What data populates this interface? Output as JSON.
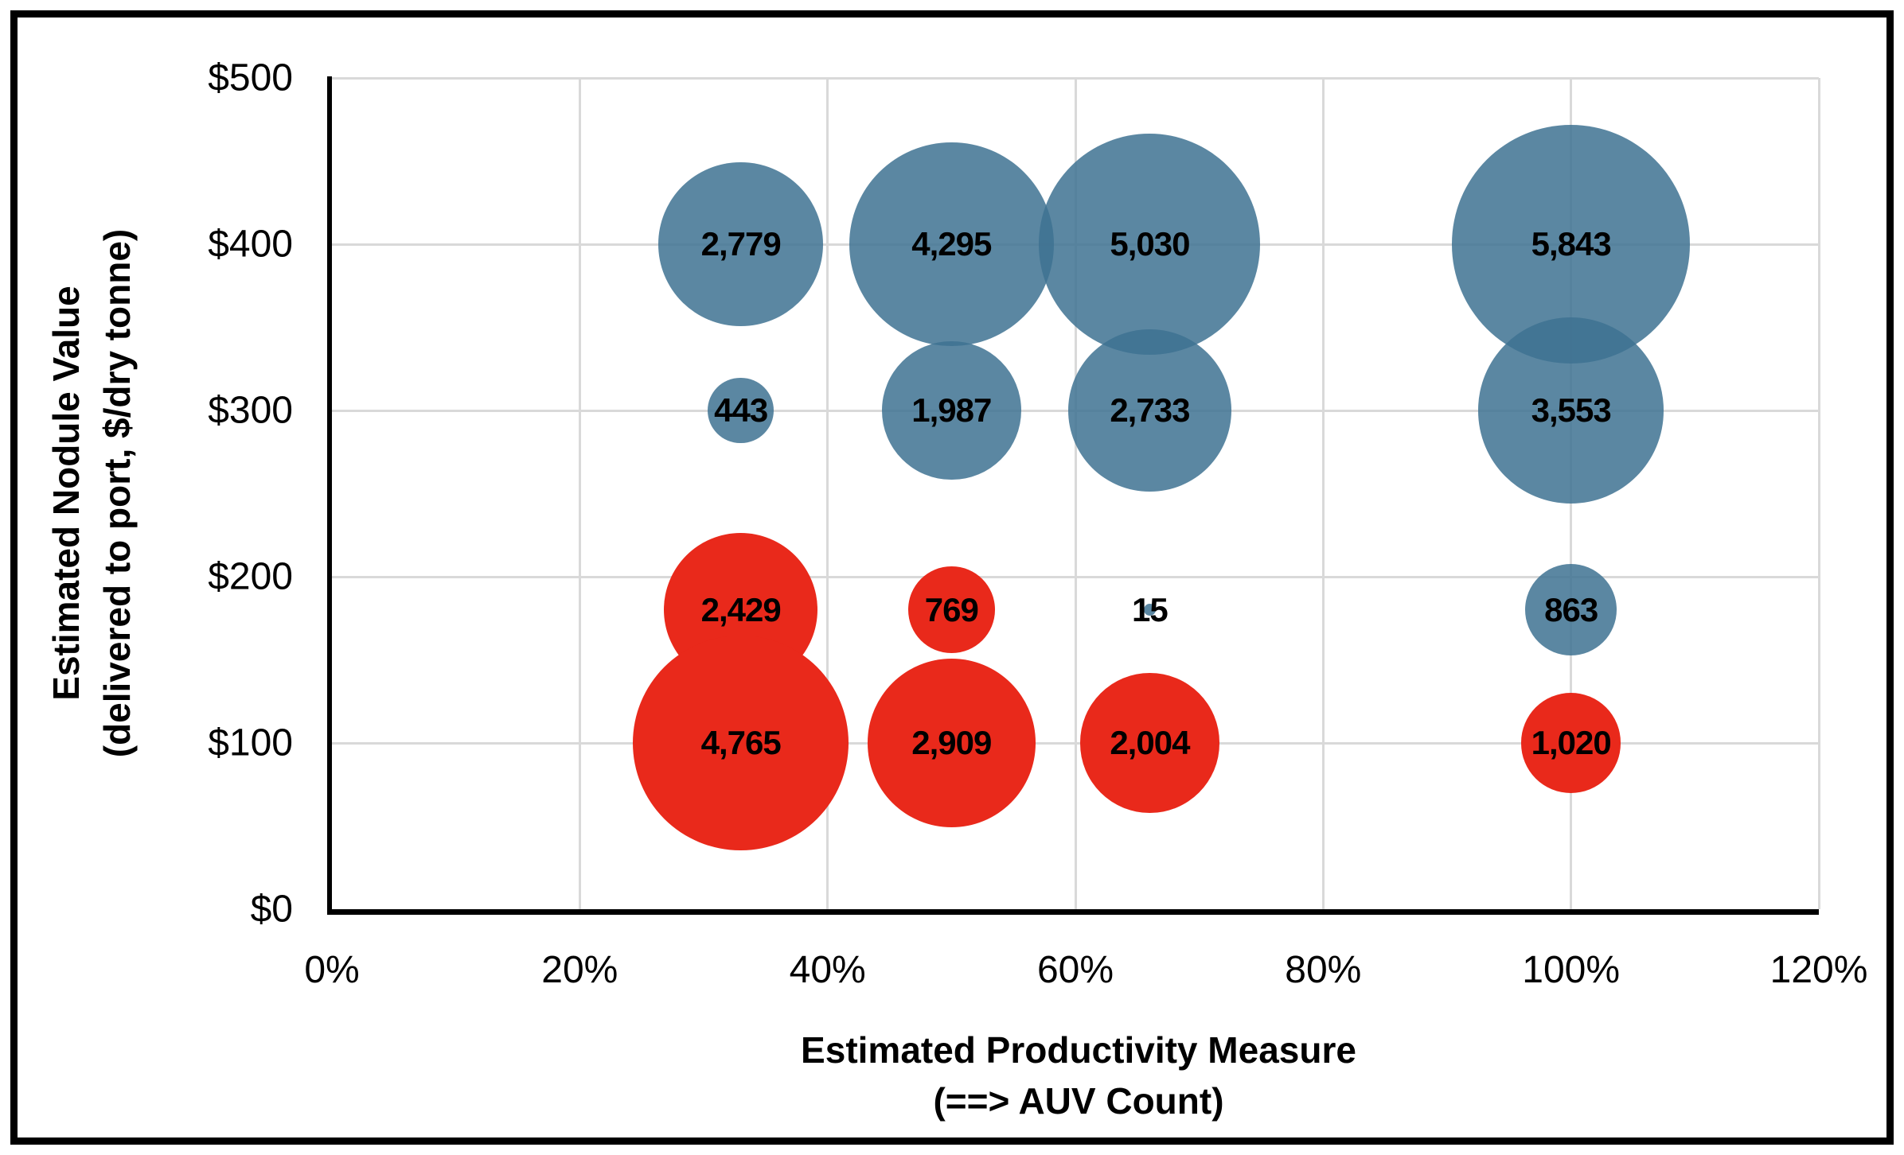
{
  "chart_data": {
    "type": "bubble",
    "title": "",
    "legend": "none",
    "grid": true,
    "x_axis": {
      "title_line1": "Estimated Productivity Measure",
      "title_line2": "(==> AUV Count)",
      "min": 0,
      "max": 120,
      "unit": "%",
      "gridline_step": 20,
      "ticks": [
        {
          "label": "0%",
          "value": 0
        },
        {
          "label": "20%",
          "value": 20
        },
        {
          "label": "40%",
          "value": 40
        },
        {
          "label": "60%",
          "value": 60
        },
        {
          "label": "80%",
          "value": 80
        },
        {
          "label": "100%",
          "value": 100
        },
        {
          "label": "120%",
          "value": 120
        }
      ]
    },
    "y_axis": {
      "title_line1": "Estimated Nodule Value",
      "title_line2": "(delivered to port, $/dry tonne)",
      "min": 0,
      "max": 500,
      "unit": "$/dry tonne",
      "gridline_step": 100,
      "ticks": [
        {
          "label": "$0",
          "value": 0
        },
        {
          "label": "$100",
          "value": 100
        },
        {
          "label": "$200",
          "value": 200
        },
        {
          "label": "$300",
          "value": 300
        },
        {
          "label": "$400",
          "value": 400
        },
        {
          "label": "$500",
          "value": 500
        }
      ]
    },
    "size_encoding": "bubble area proportional to value shown in label",
    "series": [
      {
        "name": "blue",
        "color_hex": "#5B87A2",
        "css_fill": "rgba(62,114,146,0.85)",
        "points": [
          {
            "x": 33,
            "y": 400,
            "value": 2779,
            "label": "2,779"
          },
          {
            "x": 50,
            "y": 400,
            "value": 4295,
            "label": "4,295"
          },
          {
            "x": 66,
            "y": 400,
            "value": 5030,
            "label": "5,030"
          },
          {
            "x": 100,
            "y": 400,
            "value": 5843,
            "label": "5,843"
          },
          {
            "x": 33,
            "y": 300,
            "value": 443,
            "label": "443"
          },
          {
            "x": 50,
            "y": 300,
            "value": 1987,
            "label": "1,987"
          },
          {
            "x": 66,
            "y": 300,
            "value": 2733,
            "label": "2,733"
          },
          {
            "x": 100,
            "y": 300,
            "value": 3553,
            "label": "3,553"
          },
          {
            "x": 66,
            "y": 180,
            "value": 15,
            "label": "15"
          },
          {
            "x": 100,
            "y": 180,
            "value": 863,
            "label": "863"
          }
        ]
      },
      {
        "name": "red",
        "color_hex": "#E9291B",
        "css_fill": "rgba(233,41,27,1)",
        "points": [
          {
            "x": 33,
            "y": 180,
            "value": 2429,
            "label": "2,429"
          },
          {
            "x": 50,
            "y": 180,
            "value": 769,
            "label": "769"
          },
          {
            "x": 33,
            "y": 100,
            "value": 4765,
            "label": "4,765"
          },
          {
            "x": 50,
            "y": 100,
            "value": 2909,
            "label": "2,909"
          },
          {
            "x": 66,
            "y": 100,
            "value": 2004,
            "label": "2,004"
          },
          {
            "x": 100,
            "y": 100,
            "value": 1020,
            "label": "1,020"
          }
        ]
      }
    ],
    "colors": {
      "gridline": "#D9D9D9",
      "axis": "#000000",
      "text": "#000000",
      "background": "#FFFFFF",
      "figure_border": "#000000"
    }
  }
}
